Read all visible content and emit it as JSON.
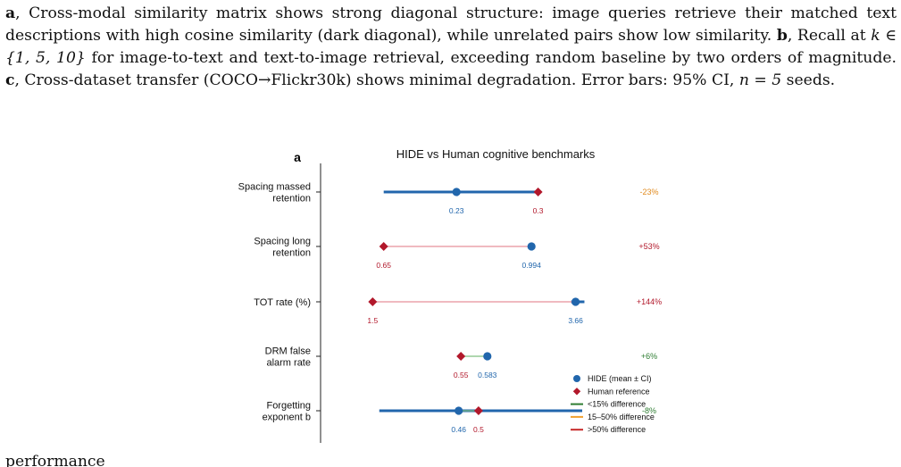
{
  "caption": {
    "a_label": "a",
    "a_text": ", Cross-modal similarity matrix shows strong diagonal structure: image queries retrieve their matched text descriptions with high cosine similarity (dark diagonal), while unrelated pairs show low similarity.",
    "b_label": "b",
    "b_text_1": ", Recall at ",
    "b_math": "k ∈ {1, 5, 10}",
    "b_text_2": " for image-to-text and text-to-image retrieval, exceeding random baseline by two orders of magnitude.",
    "c_label": "c",
    "c_text": ", Cross-dataset transfer (COCO→Flickr30k) shows minimal degradation. Error bars: 95% CI, ",
    "n_math": "n = 5",
    "end_text": " seeds.",
    "bottom_text": "performance"
  },
  "chart_data": {
    "type": "dumbbell",
    "panel_label": "a",
    "title": "HIDE vs Human cognitive benchmarks",
    "xlabel": "",
    "ylabel": "",
    "rows": [
      {
        "label_lines": [
          "Spacing massed",
          "retention"
        ],
        "hide": 0.23,
        "human": 0.3,
        "hide_label": "0.23",
        "human_label": "0.3",
        "diff": "-23%",
        "category": "15-50%",
        "hide_pos": 0.43,
        "human_pos": 0.8,
        "ci_low_pos": 0.1,
        "ci_high_pos": 0.8
      },
      {
        "label_lines": [
          "Spacing long",
          "retention"
        ],
        "hide": 0.994,
        "human": 0.65,
        "hide_label": "0.994",
        "human_label": "0.65",
        "diff": "+53%",
        "category": ">50%",
        "hide_pos": 0.77,
        "human_pos": 0.1,
        "ci_low_pos": null,
        "ci_high_pos": null
      },
      {
        "label_lines": [
          "TOT rate (%)"
        ],
        "hide": 3.66,
        "human": 1.5,
        "hide_label": "3.66",
        "human_label": "1.5",
        "diff": "+144%",
        "category": ">50%",
        "hide_pos": 0.97,
        "human_pos": 0.05,
        "ci_low_pos": 0.95,
        "ci_high_pos": 1.01
      },
      {
        "label_lines": [
          "DRM false",
          "alarm rate"
        ],
        "hide": 0.583,
        "human": 0.55,
        "hide_label": "0.583",
        "human_label": "0.55",
        "diff": "+6%",
        "category": "<15%",
        "hide_pos": 0.57,
        "human_pos": 0.45,
        "ci_low_pos": null,
        "ci_high_pos": null
      },
      {
        "label_lines": [
          "Forgetting",
          "exponent b"
        ],
        "hide": 0.46,
        "human": 0.5,
        "hide_label": "0.46",
        "human_label": "0.5",
        "diff": "-8%",
        "category": "<15%",
        "hide_pos": 0.44,
        "human_pos": 0.53,
        "ci_low_pos": 0.08,
        "ci_high_pos": 1.0
      }
    ],
    "legend": {
      "placement": "lower-right",
      "items": [
        {
          "kind": "circle",
          "label": "HIDE (mean ± CI)",
          "color": "#2166ac"
        },
        {
          "kind": "diamond",
          "label": "Human reference",
          "color": "#b2182b"
        },
        {
          "kind": "line",
          "label": "<15% difference",
          "color": "#2e7d32"
        },
        {
          "kind": "line",
          "label": "15–50% difference",
          "color": "#f0a030"
        },
        {
          "kind": "line",
          "label": ">50% difference",
          "color": "#c62828"
        }
      ]
    },
    "colors": {
      "hide": "#2166ac",
      "human": "#b2182b",
      "diff_small": "#2e7d32",
      "diff_mid": "#e08a1e",
      "diff_large": "#b2182b",
      "connector_small": "#7fbf7f",
      "connector_large": "#e8909a"
    }
  }
}
